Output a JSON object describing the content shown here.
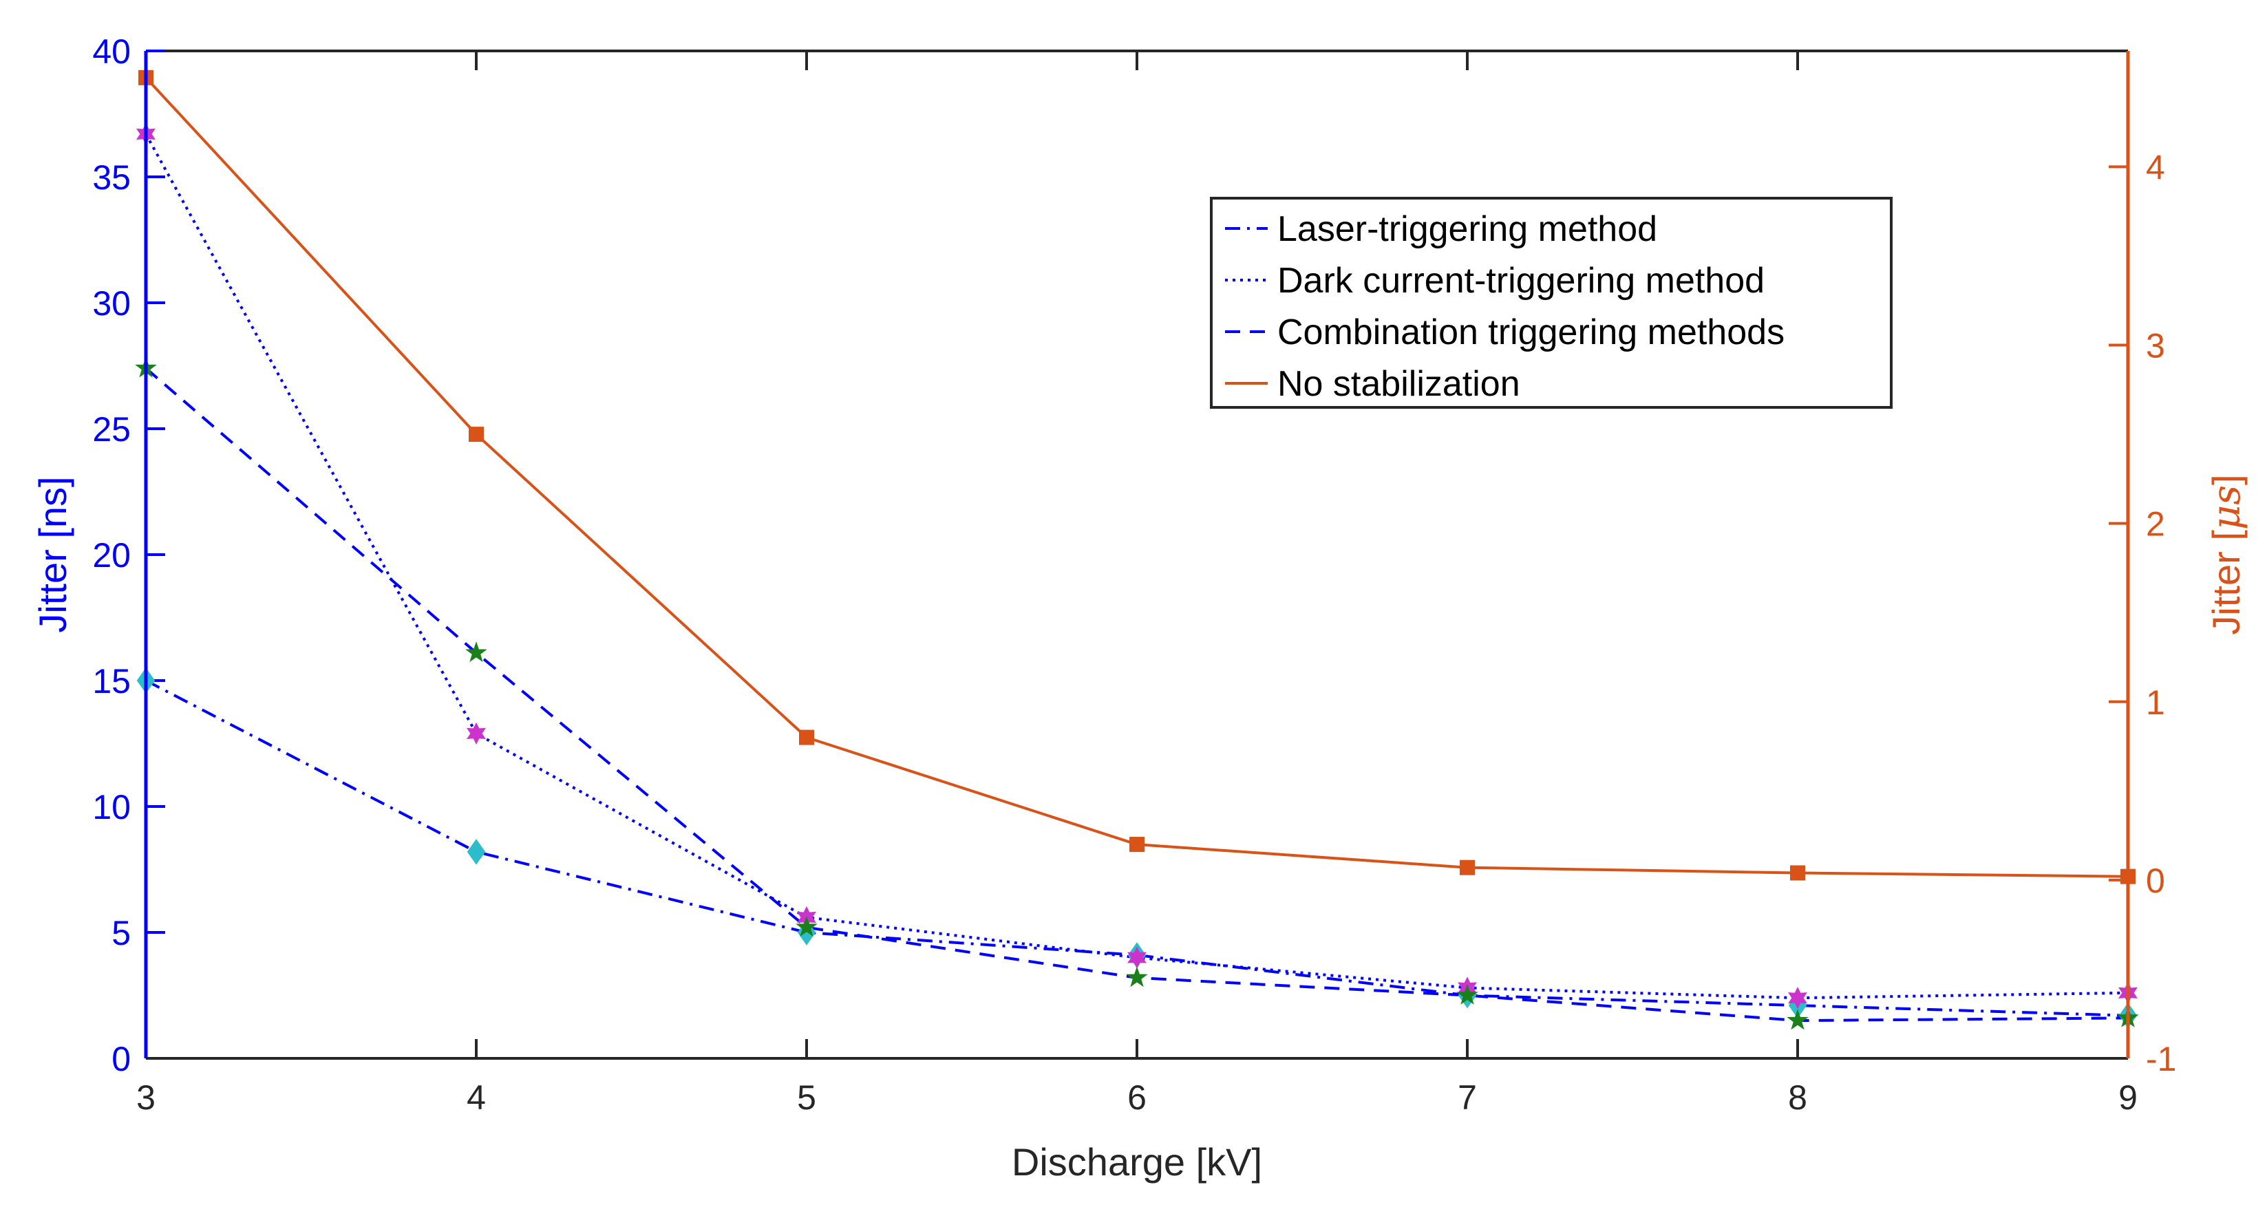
{
  "chart_data": {
    "type": "line",
    "x_label": "Discharge [kV]",
    "x_ticks": [
      "3",
      "4",
      "5",
      "6",
      "7",
      "8",
      "9"
    ],
    "x_range": [
      3,
      9
    ],
    "left_axis": {
      "label": "Jitter [ns]",
      "range": [
        0,
        40
      ],
      "ticks": [
        "0",
        "5",
        "10",
        "15",
        "20",
        "25",
        "30",
        "35",
        "40"
      ],
      "color": "#0000ff"
    },
    "right_axis": {
      "label_prefix": "Jitter [",
      "label_unit": "μs",
      "label_suffix": "]",
      "range": [
        -1,
        4.65
      ],
      "ticks": [
        "-1",
        "0",
        "1",
        "2",
        "3",
        "4"
      ],
      "color": "#d95319"
    },
    "x": [
      3,
      4,
      5,
      6,
      7,
      8,
      9
    ],
    "series": [
      {
        "name": "Laser-triggering method",
        "axis": "left",
        "values": [
          15.0,
          8.2,
          5.0,
          4.1,
          2.5,
          2.1,
          1.7
        ],
        "color": "#0000ff",
        "dash": "dashdot",
        "marker": "diamond",
        "marker_color": "#2bbdc9"
      },
      {
        "name": "Dark current-triggering method",
        "axis": "left",
        "values": [
          36.7,
          12.9,
          5.6,
          4.0,
          2.8,
          2.4,
          2.6
        ],
        "color": "#0000ff",
        "dash": "dotted",
        "marker": "hexagram",
        "marker_color": "#cc33cc"
      },
      {
        "name": "Combination triggering methods",
        "axis": "left",
        "values": [
          27.4,
          16.1,
          5.2,
          3.2,
          2.5,
          1.5,
          1.6
        ],
        "color": "#0000ff",
        "dash": "dashed",
        "marker": "star",
        "marker_color": "#1a801a"
      },
      {
        "name": "No stabilization",
        "axis": "right",
        "values": [
          4.5,
          2.5,
          0.8,
          0.2,
          0.07,
          0.04,
          0.02
        ],
        "color": "#d95319",
        "dash": "solid",
        "marker": "square",
        "marker_color": "#d95319"
      }
    ],
    "legend_position": "upper-right"
  }
}
